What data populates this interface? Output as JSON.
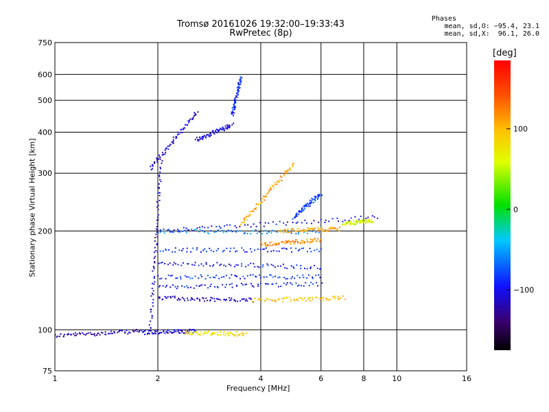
{
  "title_line1": "Tromsø 20161026 19:32:00–19:33:43",
  "title_line2": "RwPretec (8p)",
  "stats": {
    "heading": "Phases",
    "o_line": "mean, sd,O: −95.4, 23.1",
    "x_line": "mean, sd,X:  96.1, 26.0"
  },
  "colorbar": {
    "label": "[deg]",
    "ticks": [
      "100",
      "0",
      "−100"
    ],
    "tick_values": [
      100,
      0,
      -100
    ],
    "range": [
      -175,
      185
    ]
  },
  "chart_data": {
    "type": "scatter",
    "xlabel": "Frequency [MHz]",
    "ylabel": "Stationary phase Virtual Height [km]",
    "xscale": "log",
    "yscale": "log",
    "xlim": [
      1,
      16
    ],
    "ylim": [
      75,
      750
    ],
    "xticks": [
      1,
      2,
      4,
      6,
      8,
      10,
      16
    ],
    "xtick_labels": [
      "1",
      "2",
      "4",
      "6",
      "8",
      "10",
      "16"
    ],
    "yticks": [
      75,
      100,
      200,
      300,
      400,
      500,
      600,
      750
    ],
    "ytick_labels": [
      "75",
      "100",
      "200",
      "300",
      "400",
      "500",
      "600",
      "750"
    ],
    "grid": true,
    "traces": [
      {
        "x": [
          1.0,
          1.8
        ],
        "y": [
          96,
          99
        ],
        "phase": -120
      },
      {
        "x": [
          1.8,
          2.6
        ],
        "y": [
          98,
          99
        ],
        "phase": -110
      },
      {
        "x": [
          2.4,
          3.6
        ],
        "y": [
          98,
          97
        ],
        "phase": 80
      },
      {
        "x": [
          1.9,
          2.05
        ],
        "y": [
          100,
          330
        ],
        "phase": -115
      },
      {
        "x": [
          1.9,
          2.6
        ],
        "y": [
          310,
          460
        ],
        "phase": -110
      },
      {
        "x": [
          2.6,
          3.3
        ],
        "y": [
          380,
          420
        ],
        "phase": -105
      },
      {
        "x": [
          3.3,
          3.5
        ],
        "y": [
          450,
          590
        ],
        "phase": -90
      },
      {
        "x": [
          2.0,
          8.8
        ],
        "y": [
          200,
          220
        ],
        "phase": -100
      },
      {
        "x": [
          2.0,
          6.0
        ],
        "y": [
          200,
          198
        ],
        "phase": -60
      },
      {
        "x": [
          4.5,
          6.8
        ],
        "y": [
          200,
          203
        ],
        "phase": 110
      },
      {
        "x": [
          2.0,
          6.0
        ],
        "y": [
          175,
          175
        ],
        "phase": -90
      },
      {
        "x": [
          4.0,
          6.0
        ],
        "y": [
          182,
          188
        ],
        "phase": 120
      },
      {
        "x": [
          2.0,
          6.0
        ],
        "y": [
          160,
          155
        ],
        "phase": -95
      },
      {
        "x": [
          2.0,
          6.0
        ],
        "y": [
          145,
          145
        ],
        "phase": -85
      },
      {
        "x": [
          2.0,
          6.0
        ],
        "y": [
          135,
          138
        ],
        "phase": -95
      },
      {
        "x": [
          2.0,
          3.8
        ],
        "y": [
          125,
          123
        ],
        "phase": -115
      },
      {
        "x": [
          3.8,
          7.0
        ],
        "y": [
          123,
          125
        ],
        "phase": 95
      },
      {
        "x": [
          3.5,
          5.0
        ],
        "y": [
          210,
          320
        ],
        "phase": 110
      },
      {
        "x": [
          5.0,
          6.0
        ],
        "y": [
          220,
          260
        ],
        "phase": -80
      },
      {
        "x": [
          7.0,
          8.5
        ],
        "y": [
          210,
          215
        ],
        "phase": 60
      }
    ]
  }
}
